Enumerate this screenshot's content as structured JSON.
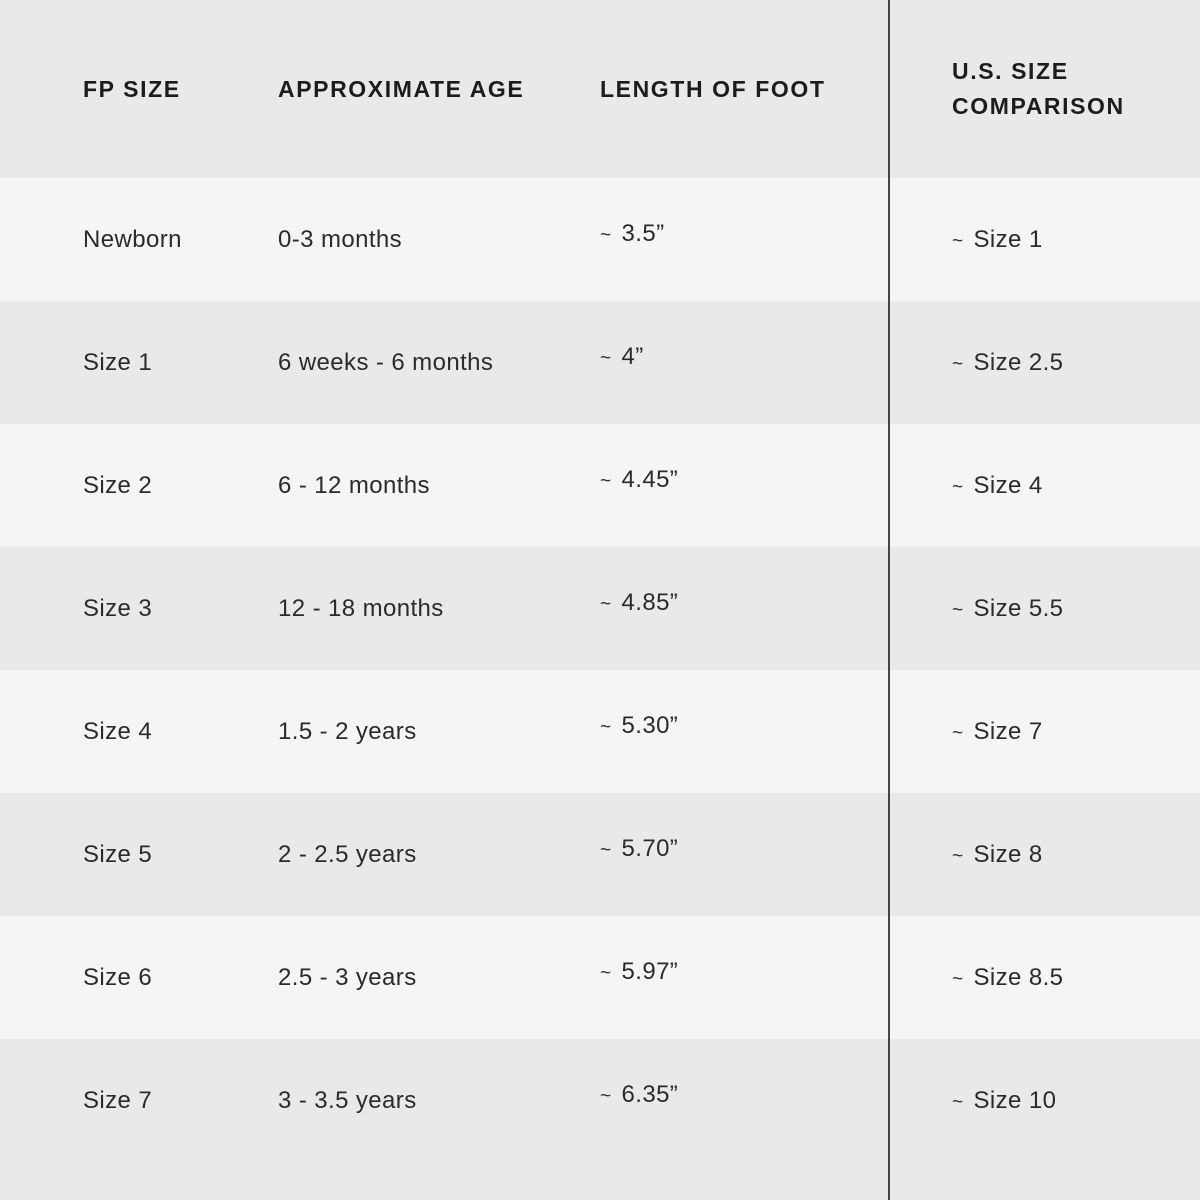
{
  "colors": {
    "band_dark": "#e9e9e9",
    "band_light": "#f5f5f7",
    "divider_line": "#454545",
    "header_text": "#1c1c1c",
    "body_text": "#2b2b2b"
  },
  "table": {
    "approx_symbol": "~",
    "columns": [
      {
        "label": "FP SIZE"
      },
      {
        "label": "APPROXIMATE AGE"
      },
      {
        "label": "LENGTH OF FOOT"
      },
      {
        "label": "U.S. SIZE COMPARISON"
      }
    ],
    "rows": [
      {
        "fp_size": "Newborn",
        "age": "0-3 months",
        "foot_length": "3.5”",
        "us_size": "Size 1"
      },
      {
        "fp_size": "Size 1",
        "age": "6 weeks - 6 months",
        "foot_length": "4”",
        "us_size": "Size 2.5"
      },
      {
        "fp_size": "Size 2",
        "age": "6 - 12 months",
        "foot_length": "4.45”",
        "us_size": "Size 4"
      },
      {
        "fp_size": "Size 3",
        "age": "12 - 18 months",
        "foot_length": "4.85”",
        "us_size": "Size 5.5"
      },
      {
        "fp_size": "Size 4",
        "age": "1.5 - 2 years",
        "foot_length": "5.30”",
        "us_size": "Size 7"
      },
      {
        "fp_size": "Size 5",
        "age": "2 - 2.5 years",
        "foot_length": "5.70”",
        "us_size": "Size 8"
      },
      {
        "fp_size": "Size 6",
        "age": "2.5 - 3 years",
        "foot_length": "5.97”",
        "us_size": "Size 8.5"
      },
      {
        "fp_size": "Size 7",
        "age": "3 - 3.5 years",
        "foot_length": "6.35”",
        "us_size": "Size 10"
      }
    ]
  }
}
